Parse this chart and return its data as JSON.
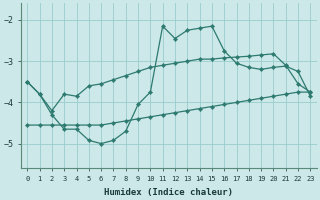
{
  "xlabel": "Humidex (Indice chaleur)",
  "ylabel": "",
  "background_color": "#cce8e8",
  "line_color": "#2d7a70",
  "grid_color": "#99cccc",
  "xlim": [
    -0.5,
    23.5
  ],
  "ylim": [
    -5.6,
    -1.6
  ],
  "yticks": [
    -5,
    -4,
    -3,
    -2
  ],
  "xticks": [
    0,
    1,
    2,
    3,
    4,
    5,
    6,
    7,
    8,
    9,
    10,
    11,
    12,
    13,
    14,
    15,
    16,
    17,
    18,
    19,
    20,
    21,
    22,
    23
  ],
  "series": [
    {
      "x": [
        0,
        1,
        2,
        3,
        4,
        5,
        6,
        7,
        8,
        9,
        10,
        11,
        12,
        13,
        14,
        15,
        16,
        17,
        18,
        19,
        20,
        21,
        22,
        23
      ],
      "y": [
        -3.5,
        -3.8,
        -4.2,
        -3.8,
        -3.85,
        -3.6,
        -3.55,
        -3.45,
        -3.35,
        -3.25,
        -3.15,
        -3.1,
        -3.05,
        -3.0,
        -2.95,
        -2.95,
        -2.92,
        -2.9,
        -2.88,
        -2.85,
        -2.82,
        -3.1,
        -3.55,
        -3.75
      ]
    },
    {
      "x": [
        0,
        1,
        2,
        3,
        4,
        5,
        6,
        7,
        8,
        9,
        10,
        11,
        12,
        13,
        14,
        15,
        16,
        17,
        18,
        19,
        20,
        21,
        22,
        23
      ],
      "y": [
        -4.55,
        -4.55,
        -4.55,
        -4.55,
        -4.55,
        -4.55,
        -4.55,
        -4.5,
        -4.45,
        -4.4,
        -4.35,
        -4.3,
        -4.25,
        -4.2,
        -4.15,
        -4.1,
        -4.05,
        -4.0,
        -3.95,
        -3.9,
        -3.85,
        -3.8,
        -3.75,
        -3.75
      ]
    },
    {
      "x": [
        0,
        1,
        2,
        3,
        4,
        5,
        6,
        7,
        8,
        9,
        10,
        11,
        12,
        13,
        14,
        15,
        16,
        17,
        18,
        19,
        20,
        21,
        22,
        23
      ],
      "y": [
        -3.5,
        -3.8,
        -4.3,
        -4.65,
        -4.65,
        -4.92,
        -5.0,
        -4.92,
        -4.7,
        -4.05,
        -3.75,
        -2.15,
        -2.45,
        -2.25,
        -2.2,
        -2.15,
        -2.75,
        -3.05,
        -3.15,
        -3.2,
        -3.15,
        -3.12,
        -3.25,
        -3.85
      ]
    }
  ]
}
